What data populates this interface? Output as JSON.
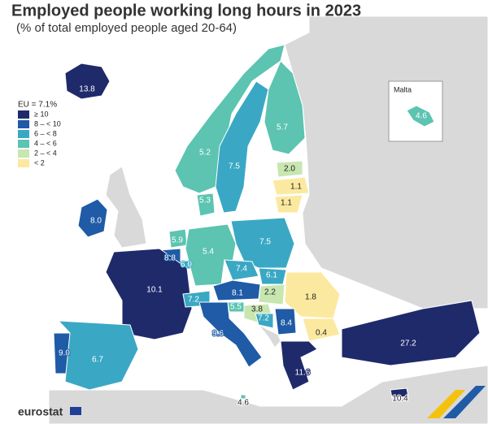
{
  "header": {
    "title": "Employed people working long hours in 2023",
    "subtitle": "(% of total employed people aged 20-64)"
  },
  "legend": {
    "title": "EU = 7.1%",
    "items": [
      {
        "label": "≥ 10",
        "color": "#1f2a6b"
      },
      {
        "label": "8 – < 10",
        "color": "#1f5ba6"
      },
      {
        "label": "6 – < 8",
        "color": "#3aa8c4"
      },
      {
        "label": "4 – < 6",
        "color": "#5cc4b0"
      },
      {
        "label": "2 – < 4",
        "color": "#c8e6b0"
      },
      {
        "label": "< 2",
        "color": "#fce9a0"
      }
    ]
  },
  "regions": [
    {
      "label": "13.8",
      "color": "#1f2a6b"
    },
    {
      "label": "8.0",
      "color": "#1f5ba6"
    },
    {
      "label": "5.2",
      "color": "#5cc4b0"
    },
    {
      "label": "7.5",
      "color": "#3aa8c4"
    },
    {
      "label": "5.7",
      "color": "#5cc4b0"
    },
    {
      "label": "2.0",
      "color": "#c8e6b0"
    },
    {
      "label": "1.1",
      "color": "#fce9a0"
    },
    {
      "label": "1.1",
      "color": "#fce9a0"
    },
    {
      "label": "5.3",
      "color": "#5cc4b0"
    },
    {
      "label": "5.9",
      "color": "#5cc4b0"
    },
    {
      "label": "8.8",
      "color": "#1f5ba6"
    },
    {
      "label": "6.0",
      "color": "#3aa8c4"
    },
    {
      "label": "5.4",
      "color": "#5cc4b0"
    },
    {
      "label": "7.5",
      "color": "#3aa8c4"
    },
    {
      "label": "7.4",
      "color": "#3aa8c4"
    },
    {
      "label": "6.1",
      "color": "#3aa8c4"
    },
    {
      "label": "10.1",
      "color": "#1f2a6b"
    },
    {
      "label": "8.1",
      "color": "#1f5ba6"
    },
    {
      "label": "2.2",
      "color": "#c8e6b0"
    },
    {
      "label": "1.8",
      "color": "#fce9a0"
    },
    {
      "label": "7.2",
      "color": "#3aa8c4"
    },
    {
      "label": "5.5",
      "color": "#5cc4b0"
    },
    {
      "label": "3.8",
      "color": "#c8e6b0"
    },
    {
      "label": "7.2",
      "color": "#3aa8c4"
    },
    {
      "label": "8.4",
      "color": "#1f5ba6"
    },
    {
      "label": "9.6",
      "color": "#1f5ba6"
    },
    {
      "label": "0.4",
      "color": "#fce9a0"
    },
    {
      "label": "9.0",
      "color": "#1f5ba6"
    },
    {
      "label": "6.7",
      "color": "#3aa8c4"
    },
    {
      "label": "11.6",
      "color": "#1f2a6b"
    },
    {
      "label": "27.2",
      "color": "#1f2a6b"
    },
    {
      "label": "10.4",
      "color": "#1f2a6b"
    },
    {
      "label": "4.6",
      "color": "#5cc4b0"
    }
  ],
  "inset": {
    "title": "Malta",
    "label": "4.6",
    "color": "#5cc4b0"
  },
  "footer": {
    "logo": "eurostat"
  }
}
